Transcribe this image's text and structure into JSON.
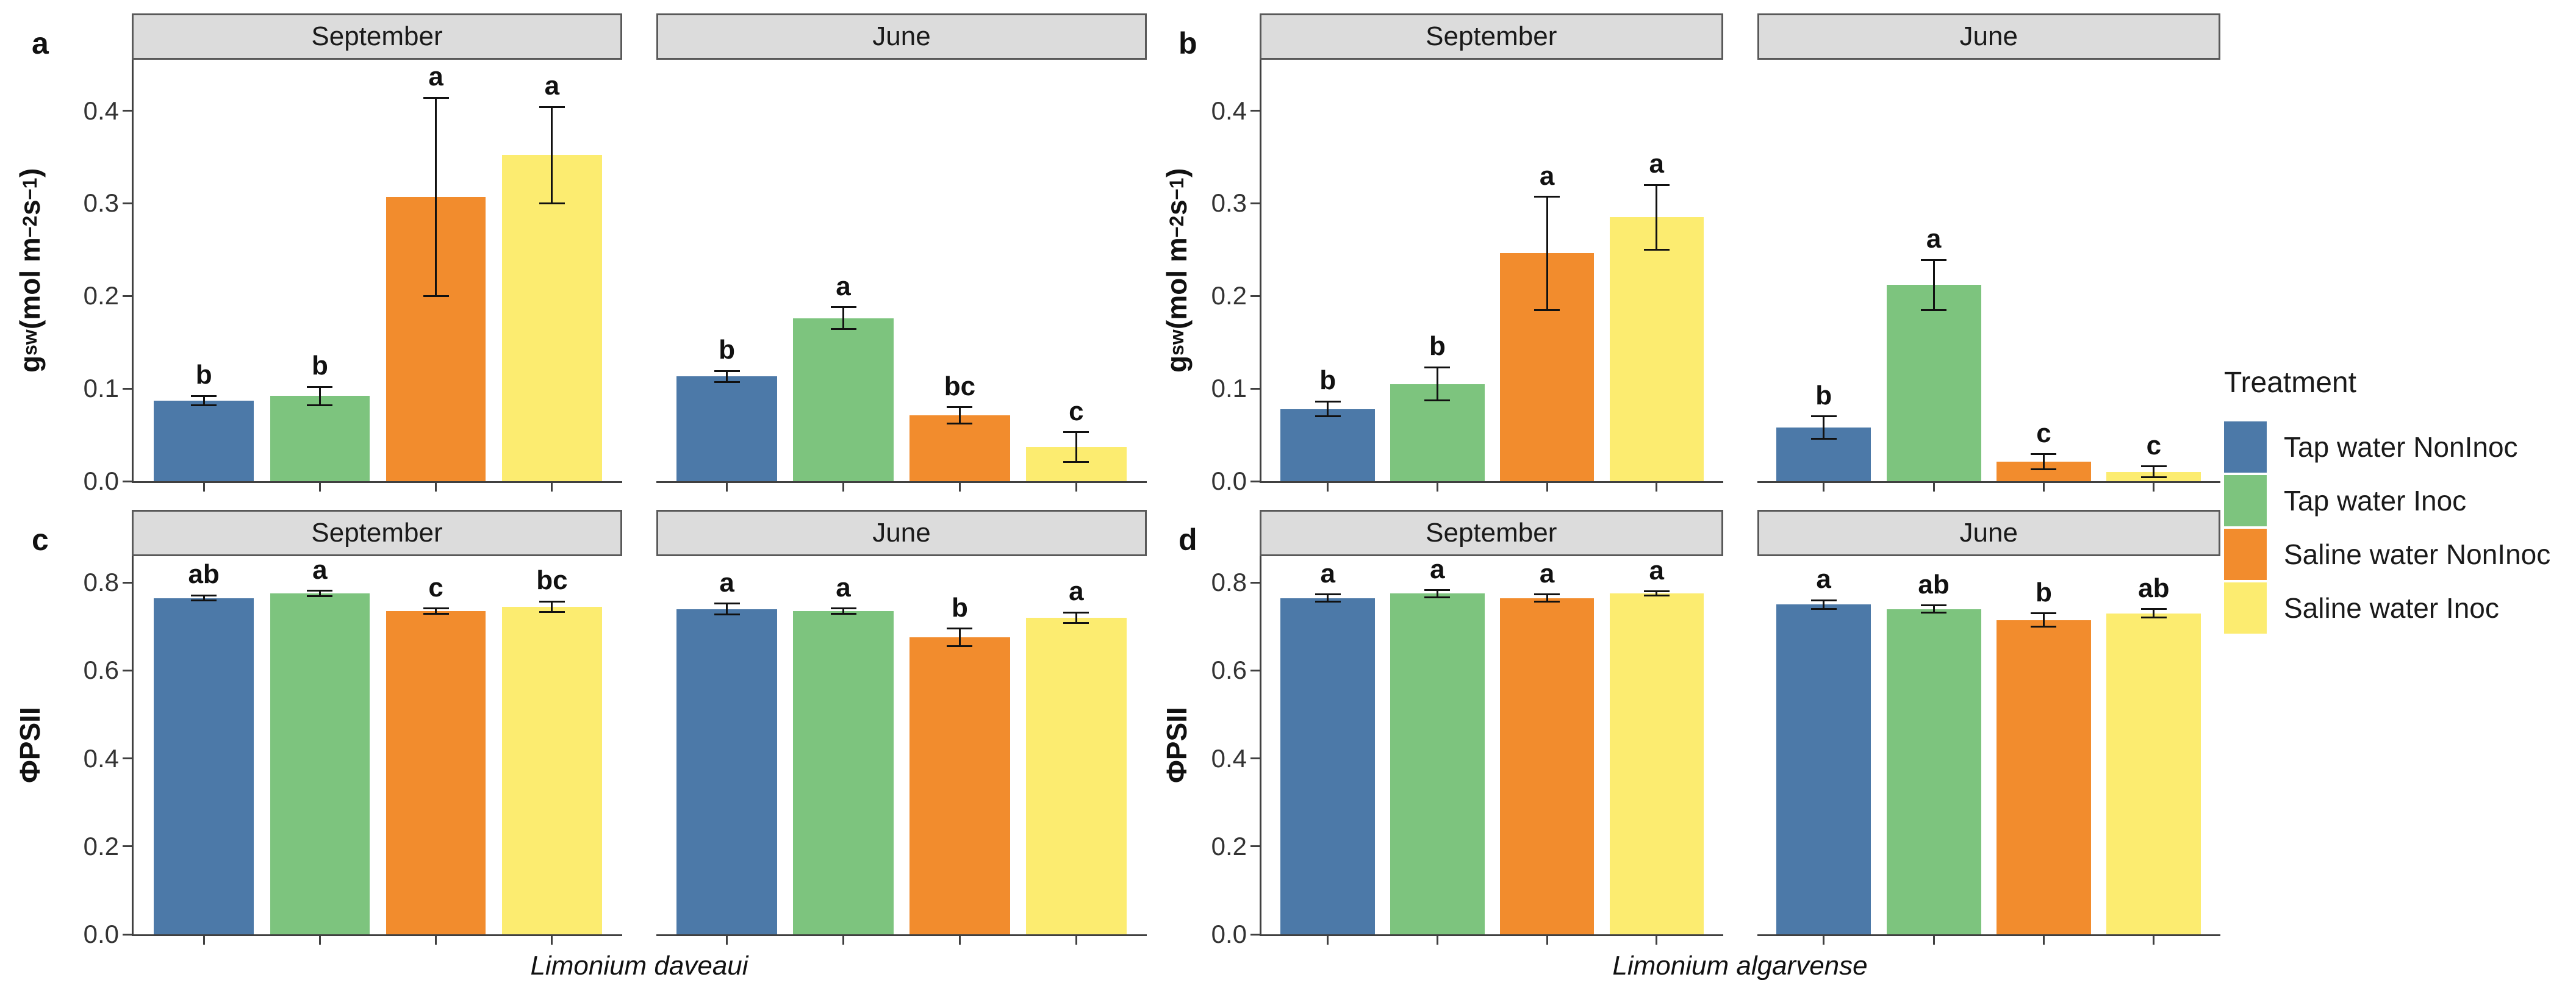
{
  "legend": {
    "title": "Treatment",
    "entries": [
      {
        "label": "Tap water NonInoc",
        "color": "#4C79A8"
      },
      {
        "label": "Tap water Inoc",
        "color": "#7DC47E"
      },
      {
        "label": "Saline water NonInoc",
        "color": "#F28C2D"
      },
      {
        "label": "Saline water Inoc",
        "color": "#FCEC70"
      }
    ]
  },
  "chart_data": {
    "type": "bar",
    "grid": false,
    "legend_position": "right",
    "error_bars": true,
    "treatments": [
      "Tap water NonInoc",
      "Tap water Inoc",
      "Saline water NonInoc",
      "Saline water Inoc"
    ],
    "panels": [
      {
        "label": "a",
        "species": null,
        "ylabel": "gsw (mol m−2 s−1)",
        "ylabel_parts": [
          {
            "t": "text",
            "s": "g"
          },
          {
            "t": "sub",
            "s": "sw"
          },
          {
            "t": "text",
            "s": " (mol m"
          },
          {
            "t": "sup",
            "s": "−2"
          },
          {
            "t": "text",
            "s": " s"
          },
          {
            "t": "sup",
            "s": "−1"
          },
          {
            "t": "text",
            "s": ")"
          }
        ],
        "ylim": [
          0,
          0.455
        ],
        "ytick_values": [
          0,
          0.1,
          0.2,
          0.3,
          0.4
        ],
        "yticks": [
          "0.0",
          "0.1",
          "0.2",
          "0.3",
          "0.4"
        ],
        "facets": [
          {
            "title": "September",
            "bars": [
              {
                "treatment": "Tap water NonInoc",
                "value": 0.087,
                "error": 0.005,
                "letter": "b"
              },
              {
                "treatment": "Tap water Inoc",
                "value": 0.092,
                "error": 0.01,
                "letter": "b"
              },
              {
                "treatment": "Saline water NonInoc",
                "value": 0.307,
                "error": 0.107,
                "letter": "a"
              },
              {
                "treatment": "Saline water Inoc",
                "value": 0.352,
                "error": 0.052,
                "letter": "a"
              }
            ]
          },
          {
            "title": "June",
            "bars": [
              {
                "treatment": "Tap water NonInoc",
                "value": 0.113,
                "error": 0.006,
                "letter": "b"
              },
              {
                "treatment": "Tap water Inoc",
                "value": 0.176,
                "error": 0.012,
                "letter": "a"
              },
              {
                "treatment": "Saline water NonInoc",
                "value": 0.071,
                "error": 0.009,
                "letter": "bc"
              },
              {
                "treatment": "Saline water Inoc",
                "value": 0.037,
                "error": 0.016,
                "letter": "c"
              }
            ]
          }
        ]
      },
      {
        "label": "b",
        "species": null,
        "ylabel": "gsw (mol m−2 s−1)",
        "ylabel_parts": [
          {
            "t": "text",
            "s": "g"
          },
          {
            "t": "sub",
            "s": "sw"
          },
          {
            "t": "text",
            "s": " (mol m"
          },
          {
            "t": "sup",
            "s": "−2"
          },
          {
            "t": "text",
            "s": " s"
          },
          {
            "t": "sup",
            "s": "−1"
          },
          {
            "t": "text",
            "s": ")"
          }
        ],
        "ylim": [
          0,
          0.455
        ],
        "ytick_values": [
          0,
          0.1,
          0.2,
          0.3,
          0.4
        ],
        "yticks": [
          "0.0",
          "0.1",
          "0.2",
          "0.3",
          "0.4"
        ],
        "facets": [
          {
            "title": "September",
            "bars": [
              {
                "treatment": "Tap water NonInoc",
                "value": 0.078,
                "error": 0.008,
                "letter": "b"
              },
              {
                "treatment": "Tap water Inoc",
                "value": 0.105,
                "error": 0.018,
                "letter": "b"
              },
              {
                "treatment": "Saline water NonInoc",
                "value": 0.246,
                "error": 0.061,
                "letter": "a"
              },
              {
                "treatment": "Saline water Inoc",
                "value": 0.285,
                "error": 0.035,
                "letter": "a"
              }
            ]
          },
          {
            "title": "June",
            "bars": [
              {
                "treatment": "Tap water NonInoc",
                "value": 0.058,
                "error": 0.012,
                "letter": "b"
              },
              {
                "treatment": "Tap water Inoc",
                "value": 0.212,
                "error": 0.027,
                "letter": "a"
              },
              {
                "treatment": "Saline water NonInoc",
                "value": 0.021,
                "error": 0.008,
                "letter": "c"
              },
              {
                "treatment": "Saline water Inoc",
                "value": 0.01,
                "error": 0.006,
                "letter": "c"
              }
            ]
          }
        ]
      },
      {
        "label": "c",
        "species": "Limonium daveaui",
        "ylabel": "ΦPSII",
        "ylabel_parts": [
          {
            "t": "text",
            "s": "ΦPSII"
          }
        ],
        "ylim": [
          0,
          0.86
        ],
        "ytick_values": [
          0,
          0.2,
          0.4,
          0.6,
          0.8
        ],
        "yticks": [
          "0.0",
          "0.2",
          "0.4",
          "0.6",
          "0.8"
        ],
        "facets": [
          {
            "title": "September",
            "bars": [
              {
                "treatment": "Tap water NonInoc",
                "value": 0.765,
                "error": 0.006,
                "letter": "ab"
              },
              {
                "treatment": "Tap water Inoc",
                "value": 0.775,
                "error": 0.006,
                "letter": "a"
              },
              {
                "treatment": "Saline water NonInoc",
                "value": 0.735,
                "error": 0.006,
                "letter": "c"
              },
              {
                "treatment": "Saline water Inoc",
                "value": 0.745,
                "error": 0.012,
                "letter": "bc"
              }
            ]
          },
          {
            "title": "June",
            "bars": [
              {
                "treatment": "Tap water NonInoc",
                "value": 0.74,
                "error": 0.012,
                "letter": "a"
              },
              {
                "treatment": "Tap water Inoc",
                "value": 0.735,
                "error": 0.006,
                "letter": "a"
              },
              {
                "treatment": "Saline water NonInoc",
                "value": 0.675,
                "error": 0.02,
                "letter": "b"
              },
              {
                "treatment": "Saline water Inoc",
                "value": 0.72,
                "error": 0.012,
                "letter": "a"
              }
            ]
          }
        ]
      },
      {
        "label": "d",
        "species": "Limonium algarvense",
        "ylabel": "ΦPSII",
        "ylabel_parts": [
          {
            "t": "text",
            "s": "ΦPSII"
          }
        ],
        "ylim": [
          0,
          0.86
        ],
        "ytick_values": [
          0,
          0.2,
          0.4,
          0.6,
          0.8
        ],
        "yticks": [
          "0.0",
          "0.2",
          "0.4",
          "0.6",
          "0.8"
        ],
        "facets": [
          {
            "title": "September",
            "bars": [
              {
                "treatment": "Tap water NonInoc",
                "value": 0.765,
                "error": 0.008,
                "letter": "a"
              },
              {
                "treatment": "Tap water Inoc",
                "value": 0.775,
                "error": 0.008,
                "letter": "a"
              },
              {
                "treatment": "Saline water NonInoc",
                "value": 0.765,
                "error": 0.008,
                "letter": "a"
              },
              {
                "treatment": "Saline water Inoc",
                "value": 0.775,
                "error": 0.005,
                "letter": "a"
              }
            ]
          },
          {
            "title": "June",
            "bars": [
              {
                "treatment": "Tap water NonInoc",
                "value": 0.75,
                "error": 0.01,
                "letter": "a"
              },
              {
                "treatment": "Tap water Inoc",
                "value": 0.74,
                "error": 0.008,
                "letter": "ab"
              },
              {
                "treatment": "Saline water NonInoc",
                "value": 0.715,
                "error": 0.015,
                "letter": "b"
              },
              {
                "treatment": "Saline water Inoc",
                "value": 0.73,
                "error": 0.01,
                "letter": "ab"
              }
            ]
          }
        ]
      }
    ]
  }
}
